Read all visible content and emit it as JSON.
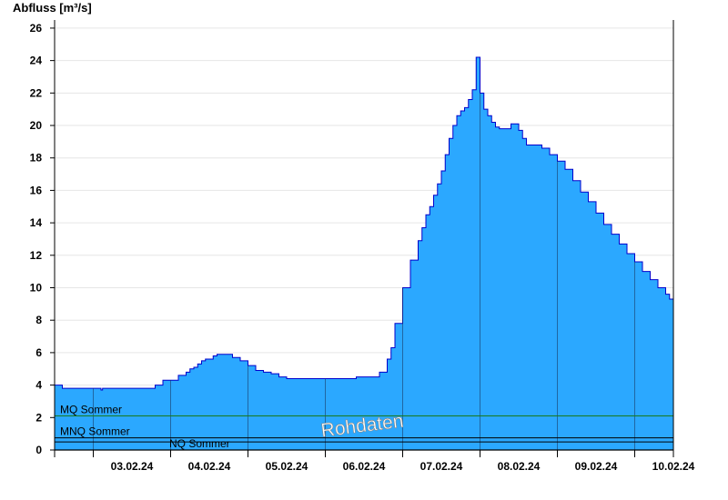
{
  "chart_data": {
    "type": "area",
    "ylabel": "Abfluss [m³/s]",
    "ylim": [
      0,
      26.5
    ],
    "y_ticks": [
      0,
      2,
      4,
      6,
      8,
      10,
      12,
      14,
      16,
      18,
      20,
      22,
      24,
      26
    ],
    "x_range": [
      "02.02.24 12:00",
      "10.02.24 12:00"
    ],
    "x_tick_labels": [
      "03.02.24",
      "04.02.24",
      "05.02.24",
      "06.02.24",
      "07.02.24",
      "08.02.24",
      "09.02.24",
      "10.02.24"
    ],
    "grid": true,
    "fill_color": "#2ba8ff",
    "line_color": "#0000cc",
    "series": [
      {
        "x": [
          0,
          0.05,
          0.1,
          0.5,
          0.6,
          0.62,
          0.7,
          0.75,
          1.0,
          1.3,
          1.4,
          1.6,
          1.7,
          1.75,
          1.8,
          1.85,
          1.9,
          1.95,
          2.0,
          2.05,
          2.1,
          2.15,
          2.2,
          2.3,
          2.4,
          2.5,
          2.6,
          2.7,
          2.8,
          2.9,
          3.0,
          3.05,
          3.1,
          3.15,
          3.2,
          3.3,
          3.4,
          3.5,
          3.6,
          3.7,
          3.8,
          3.9,
          4.0,
          4.1,
          4.2,
          4.3,
          4.35,
          4.4,
          4.5,
          4.6,
          4.7,
          4.75,
          4.8,
          4.85,
          4.9,
          4.95,
          5.0,
          5.05,
          5.1,
          5.15,
          5.2,
          5.25,
          5.3,
          5.35,
          5.4,
          5.45,
          5.5,
          5.55,
          5.6,
          5.65,
          5.7,
          5.75,
          5.8,
          5.85,
          5.9,
          5.95,
          6.0,
          6.05,
          6.1,
          6.2,
          6.3,
          6.4,
          6.5,
          6.6,
          6.7,
          6.8,
          6.9,
          7.0,
          7.1,
          7.2,
          7.3,
          7.4,
          7.5,
          7.6,
          7.7,
          7.8,
          7.9,
          7.95,
          8.0
        ],
        "y": [
          4.0,
          4.0,
          3.8,
          3.8,
          3.7,
          3.8,
          3.8,
          3.8,
          3.8,
          4.0,
          4.3,
          4.6,
          4.8,
          5.0,
          5.1,
          5.3,
          5.5,
          5.6,
          5.6,
          5.8,
          5.9,
          5.9,
          5.9,
          5.7,
          5.5,
          5.2,
          4.9,
          4.8,
          4.7,
          4.5,
          4.4,
          4.4,
          4.4,
          4.4,
          4.4,
          4.4,
          4.4,
          4.4,
          4.4,
          4.4,
          4.4,
          4.5,
          4.5,
          4.5,
          4.8,
          5.6,
          6.3,
          7.8,
          10.0,
          11.7,
          12.9,
          13.7,
          14.5,
          15.0,
          15.7,
          16.4,
          17.2,
          18.2,
          19.2,
          20.0,
          20.6,
          20.9,
          21.1,
          21.6,
          22.2,
          24.2,
          22.0,
          21.0,
          20.6,
          20.2,
          19.9,
          19.8,
          19.8,
          19.8,
          20.1,
          20.1,
          19.7,
          19.2,
          18.8,
          18.8,
          18.6,
          18.2,
          17.8,
          17.3,
          16.6,
          15.9,
          15.3,
          14.6,
          13.9,
          13.3,
          12.7,
          12.1,
          11.6,
          11.0,
          10.5,
          10.0,
          9.6,
          9.3,
          9.0
        ]
      }
    ],
    "reference_lines": [
      {
        "label": "MQ Sommer",
        "value": 2.1,
        "color": "#1a7a1a"
      },
      {
        "label": "MNQ Sommer",
        "value": 0.75,
        "color": "#000000"
      },
      {
        "label": "NQ Sommer",
        "value": 0.5,
        "color": "#000000"
      }
    ],
    "watermark": "Rohdaten"
  }
}
